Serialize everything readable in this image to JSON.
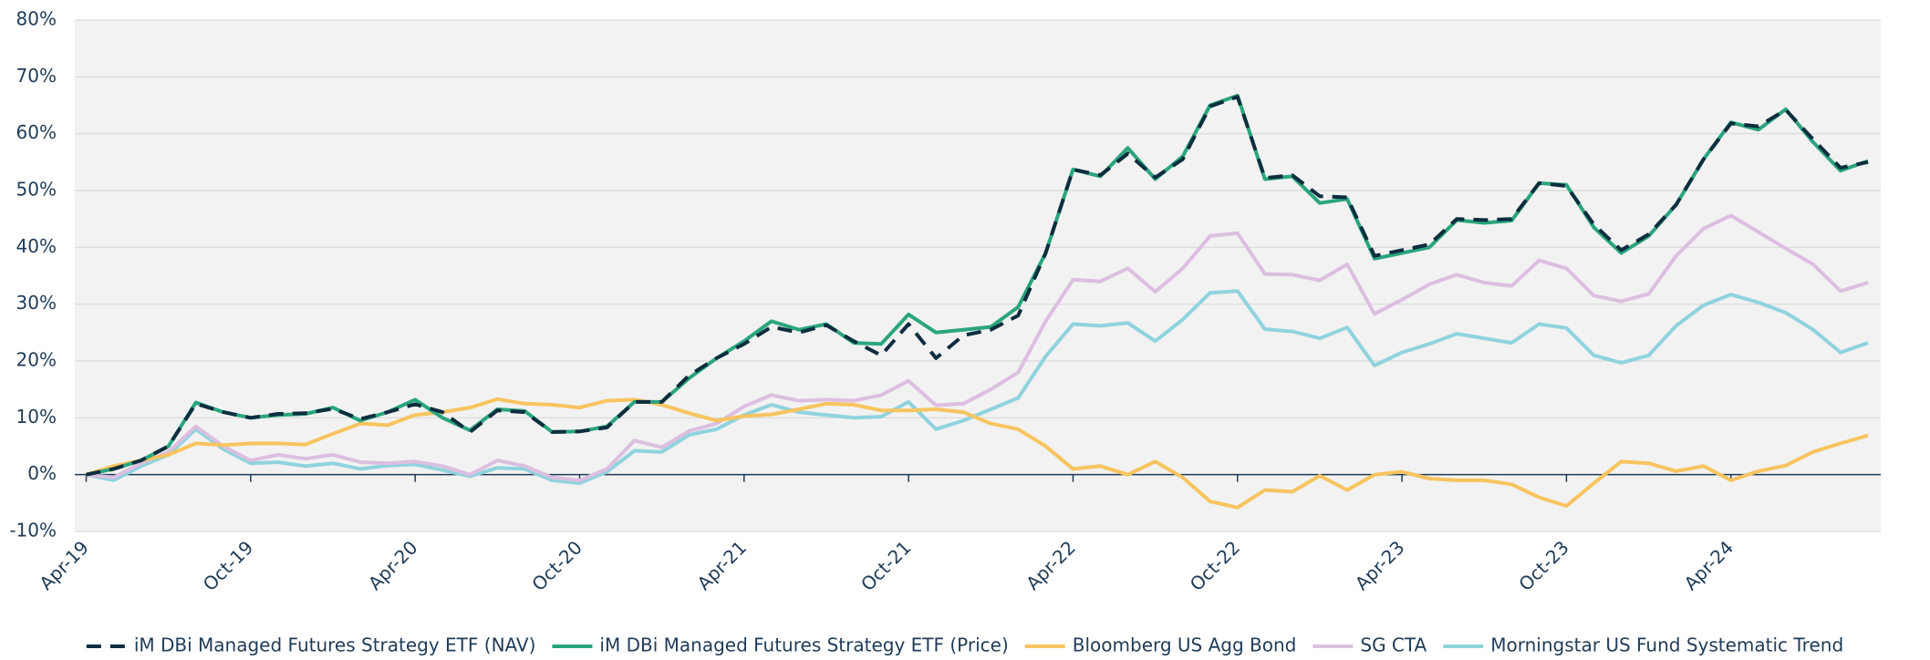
{
  "chart_data": {
    "type": "line",
    "categories": [
      "Apr-19",
      null,
      null,
      null,
      null,
      null,
      "Oct-19",
      null,
      null,
      null,
      null,
      null,
      "Apr-20",
      null,
      null,
      null,
      null,
      null,
      "Oct-20",
      null,
      null,
      null,
      null,
      null,
      "Apr-21",
      null,
      null,
      null,
      null,
      null,
      "Oct-21",
      null,
      null,
      null,
      null,
      null,
      "Apr-22",
      null,
      null,
      null,
      null,
      null,
      "Oct-22",
      null,
      null,
      null,
      null,
      null,
      "Apr-23",
      null,
      null,
      null,
      null,
      null,
      "Oct-23",
      null,
      null,
      null,
      null,
      null,
      "Apr-24",
      null,
      null,
      null,
      null,
      null
    ],
    "series": [
      {
        "name": "iM DBi Managed Futures Strategy ETF (NAV)",
        "color": "#0d2e3e",
        "dashed": true,
        "values": [
          0,
          1,
          2.5,
          5,
          12.5,
          11,
          10,
          10.7,
          10.8,
          11.6,
          9.8,
          11,
          12.4,
          11,
          7.5,
          11.3,
          11,
          7.5,
          7.6,
          8.3,
          12.8,
          12.8,
          17.5,
          20.5,
          23,
          26,
          25,
          26.3,
          23.5,
          21,
          26.5,
          20.5,
          24.5,
          25.5,
          28,
          39,
          53.7,
          52.7,
          56.5,
          52.3,
          55.5,
          64.8,
          66.5,
          52.2,
          52.7,
          49,
          48.8,
          38.5,
          39.5,
          40.5,
          45,
          44.8,
          45,
          51.3,
          50.8,
          44,
          39.5,
          42.3,
          47.5,
          55.5,
          61.8,
          61.3,
          64.2,
          59,
          54,
          55
        ]
      },
      {
        "name": "iM DBi Managed Futures Strategy ETF (Price)",
        "color": "#2aa57e",
        "dashed": false,
        "values": [
          0,
          1,
          2.5,
          5,
          12.7,
          11,
          10,
          10.5,
          10.7,
          11.8,
          9.5,
          11,
          13.2,
          10,
          7.8,
          11.5,
          11.2,
          7.5,
          7.6,
          8.5,
          12.8,
          12.8,
          17,
          20.5,
          23.5,
          27,
          25.5,
          26.5,
          23.2,
          23,
          28.2,
          25,
          25.5,
          26,
          29.5,
          39,
          53.7,
          52.5,
          57.5,
          52,
          56,
          65,
          66.7,
          52,
          52.5,
          47.8,
          48.5,
          38,
          39,
          40,
          44.8,
          44.3,
          44.7,
          51.3,
          51,
          43.5,
          39,
          42,
          47.5,
          55.5,
          62,
          60.7,
          64.3,
          58.5,
          53.5,
          55.2
        ]
      },
      {
        "name": "Bloomberg US Agg Bond",
        "color": "#f7c45e",
        "dashed": false,
        "values": [
          0,
          1.5,
          2.5,
          3.5,
          5.5,
          5.2,
          5.5,
          5.5,
          5.3,
          7.2,
          9,
          8.7,
          10.5,
          11,
          11.8,
          13.3,
          12.5,
          12.3,
          11.8,
          13,
          13.2,
          12.3,
          10.8,
          9.5,
          10.3,
          10.6,
          11.5,
          12.5,
          12.3,
          11.3,
          11.3,
          11.5,
          11,
          9,
          8,
          5,
          1,
          1.5,
          0,
          2.3,
          -0.5,
          -4.7,
          -5.8,
          -2.7,
          -3,
          -0.2,
          -2.7,
          0,
          0.5,
          -0.7,
          -1,
          -1,
          -1.7,
          -4,
          -5.5,
          -1.5,
          2.3,
          2,
          0.6,
          1.5,
          -1,
          0.6,
          1.6,
          4,
          5.5,
          6.9
        ]
      },
      {
        "name": "SG CTA",
        "color": "#dcbfe0",
        "dashed": false,
        "values": [
          0,
          -0.5,
          2,
          4,
          8.5,
          5,
          2.5,
          3.5,
          2.8,
          3.5,
          2.2,
          2,
          2.3,
          1.5,
          0,
          2.5,
          1.5,
          -0.5,
          -1,
          1,
          6,
          4.8,
          7.7,
          9,
          12,
          14,
          13,
          13.2,
          13,
          14,
          16.5,
          12.2,
          12.5,
          15,
          18,
          27,
          34.3,
          34,
          36.3,
          32.2,
          36.3,
          42,
          42.5,
          35.3,
          35.2,
          34.2,
          37,
          28.3,
          30.8,
          33.5,
          35.2,
          33.8,
          33.2,
          37.7,
          36.3,
          31.5,
          30.5,
          31.8,
          38.5,
          43.3,
          45.6,
          42.7,
          39.8,
          37,
          32.3,
          33.8
        ]
      },
      {
        "name": "Morningstar US Fund Systematic Trend",
        "color": "#8fd3dd",
        "dashed": false,
        "values": [
          0,
          -1,
          1.5,
          3.5,
          8,
          4.5,
          2,
          2.2,
          1.5,
          2,
          1,
          1.6,
          1.8,
          0.8,
          -0.3,
          1.2,
          1,
          -1,
          -1.5,
          0.5,
          4.2,
          4,
          7,
          8,
          10.5,
          12.3,
          11,
          10.5,
          10,
          10.2,
          12.8,
          8,
          9.5,
          11.5,
          13.5,
          20.8,
          26.5,
          26.2,
          26.7,
          23.5,
          27.3,
          32,
          32.3,
          25.6,
          25.2,
          24,
          25.9,
          19.2,
          21.5,
          23,
          24.8,
          24,
          23.2,
          26.5,
          25.8,
          21,
          19.7,
          21,
          26.2,
          29.8,
          31.7,
          30.3,
          28.5,
          25.5,
          21.5,
          23.2
        ]
      }
    ],
    "ylim": [
      -10,
      80
    ],
    "yticks": [
      {
        "value": -10,
        "label": "-10%"
      },
      {
        "value": 0,
        "label": "0%"
      },
      {
        "value": 10,
        "label": "10%"
      },
      {
        "value": 20,
        "label": "20%"
      },
      {
        "value": 30,
        "label": "30%"
      },
      {
        "value": 40,
        "label": "40%"
      },
      {
        "value": 50,
        "label": "50%"
      },
      {
        "value": 60,
        "label": "60%"
      },
      {
        "value": 70,
        "label": "70%"
      },
      {
        "value": 80,
        "label": "80%"
      }
    ],
    "grid": true,
    "legend": "bottom"
  }
}
